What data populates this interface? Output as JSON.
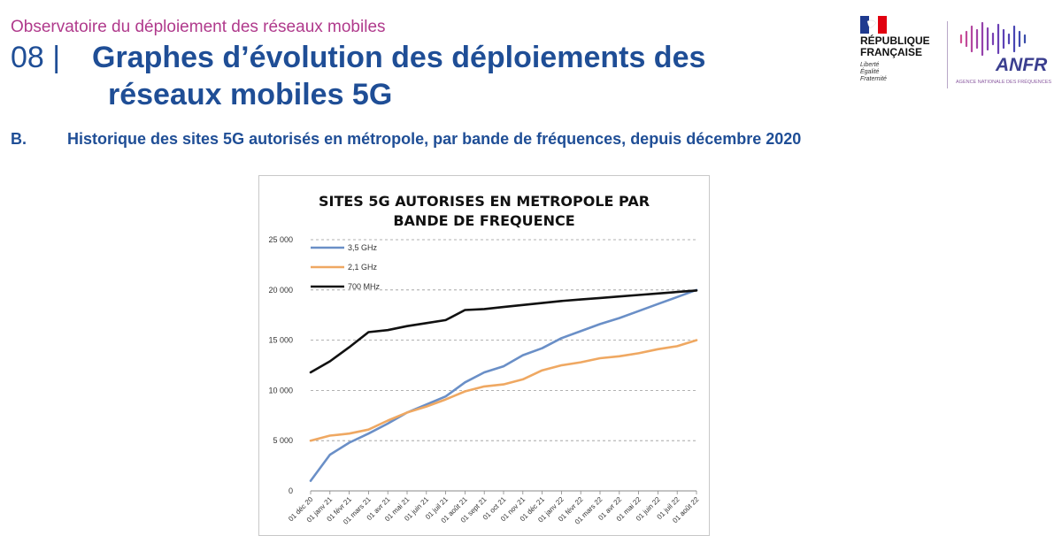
{
  "header": {
    "observatory": "Observatoire du déploiement des réseaux mobiles",
    "number": "08 |",
    "title_line1": "Graphes d’évolution des déploiements des",
    "title_line2": "réseaux mobiles 5G",
    "section_letter": "B.",
    "section_text": "Historique des sites 5G autorisés en métropole, par bande de fréquences, depuis décembre 2020"
  },
  "logos": {
    "rf_line1": "RÉPUBLIQUE",
    "rf_line2": "FRANÇAISE",
    "rf_motto1": "Liberté",
    "rf_motto2": "Égalité",
    "rf_motto3": "Fraternité",
    "anfr_name": "ANFR",
    "anfr_subtitle": "AGENCE NATIONALE DES FRÉQUENCES"
  },
  "chart_data": {
    "type": "line",
    "title_line1": "SITES 5G AUTORISES EN METROPOLE PAR",
    "title_line2": "BANDE DE FREQUENCE",
    "xlabel": "",
    "ylabel": "",
    "ylim": [
      0,
      25000
    ],
    "yticks": [
      0,
      5000,
      10000,
      15000,
      20000,
      25000
    ],
    "ytick_labels": [
      "0",
      "5 000",
      "10 000",
      "15 000",
      "20 000",
      "25 000"
    ],
    "grid": true,
    "legend_position": "top-left",
    "categories": [
      "01 déc 20",
      "01 janv 21",
      "01 févr 21",
      "01 mars 21",
      "01 avr 21",
      "01 mai 21",
      "01 juin 21",
      "01 juil 21",
      "01 août 21",
      "01 sept 21",
      "01 oct 21",
      "01 nov 21",
      "01 déc 21",
      "01 janv 22",
      "01 févr 22",
      "01 mars 22",
      "01 avr 22",
      "01 mai 22",
      "01 juin 22",
      "01 juil 22",
      "01 août 22"
    ],
    "x_positions": [
      0,
      0.5,
      1,
      1.5,
      2,
      2.5,
      3,
      3.5,
      4,
      4.5,
      5,
      5.5,
      6,
      6.5,
      7,
      7.5,
      8,
      8.5,
      9,
      9.5,
      10,
      10.5,
      11,
      11.5,
      12,
      12.5,
      13,
      13.5,
      14,
      14.5,
      15,
      15.5,
      16,
      16.5,
      17,
      17.5,
      18,
      18.5,
      19,
      19.5,
      20
    ],
    "series": [
      {
        "name": "3,5 GHz",
        "color": "#6a8fc7",
        "values": [
          1000,
          3600,
          4800,
          5700,
          6700,
          7800,
          8600,
          9400,
          10800,
          11800,
          12400,
          13500,
          14200,
          15200,
          15900,
          16600,
          17200,
          17900,
          18600,
          19300,
          20000
        ]
      },
      {
        "name": "2,1 GHz",
        "color": "#efa862",
        "values": [
          5000,
          5500,
          5700,
          6100,
          7000,
          7800,
          8400,
          9100,
          9900,
          10400,
          10600,
          11100,
          12000,
          12500,
          12800,
          13200,
          13400,
          13700,
          14100,
          14400,
          15000
        ]
      },
      {
        "name": "700 MHz",
        "color": "#111111",
        "values": [
          11800,
          12900,
          14300,
          15800,
          16000,
          16400,
          16700,
          17000,
          18000,
          18100,
          18300,
          18500,
          18700,
          18900,
          19050,
          19200,
          19350,
          19500,
          19650,
          19800,
          19950
        ]
      }
    ]
  }
}
